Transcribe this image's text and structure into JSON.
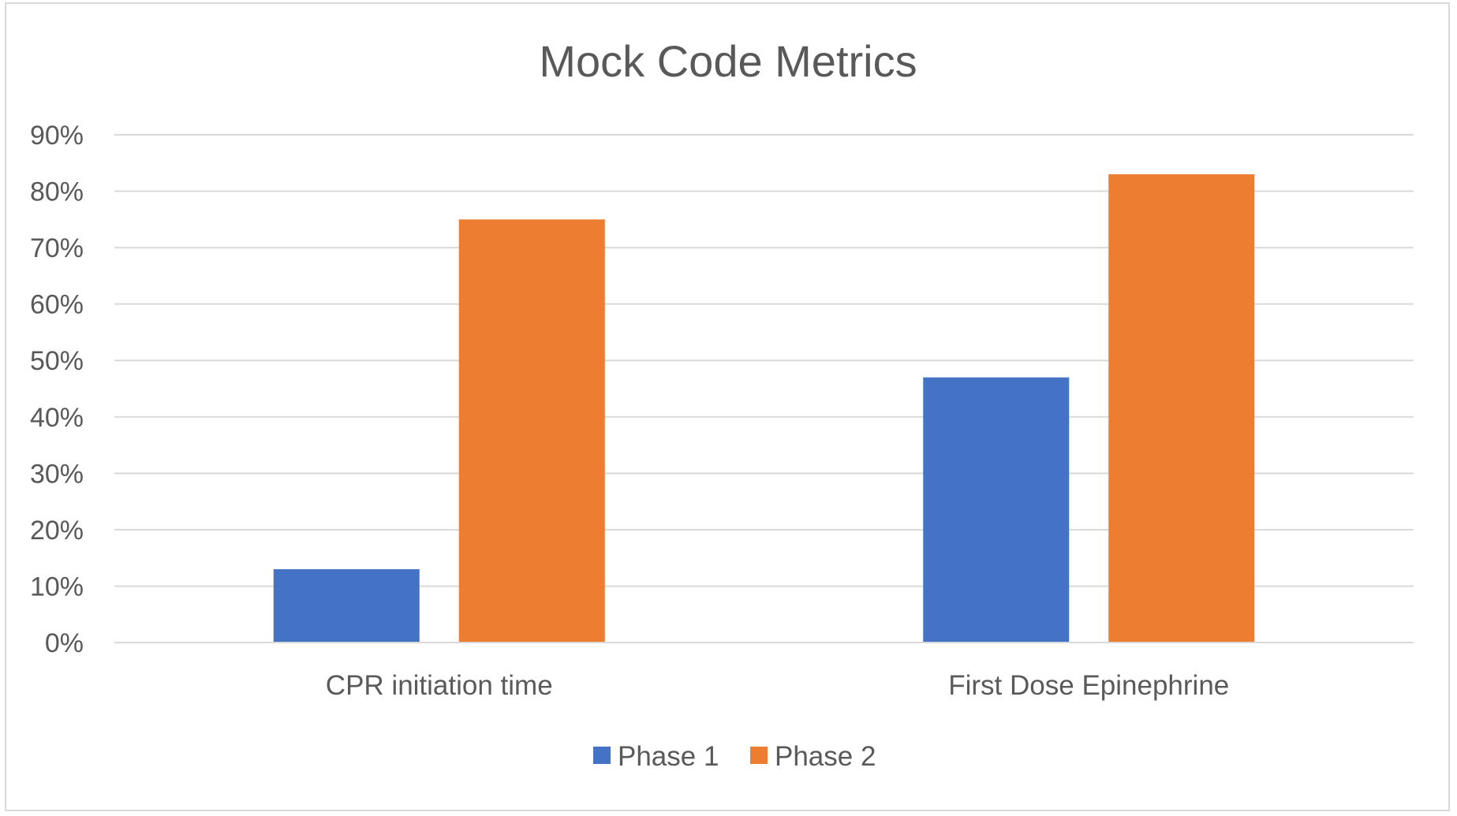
{
  "chart_data": {
    "type": "bar",
    "title": "Mock Code Metrics",
    "xlabel": "",
    "ylabel": "",
    "categories": [
      "CPR initiation time",
      "First Dose Epinephrine"
    ],
    "series": [
      {
        "name": "Phase 1",
        "color": "#4472C4",
        "values": [
          0.13,
          0.47
        ]
      },
      {
        "name": "Phase 2",
        "color": "#ED7D31",
        "values": [
          0.75,
          0.83
        ]
      }
    ],
    "ylim": [
      0,
      0.9
    ],
    "y_ticks": [
      0,
      0.1,
      0.2,
      0.3,
      0.4,
      0.5,
      0.6,
      0.7,
      0.8,
      0.9
    ],
    "y_tick_labels": [
      "0%",
      "10%",
      "20%",
      "30%",
      "40%",
      "50%",
      "60%",
      "70%",
      "80%",
      "90%"
    ],
    "y_format": "percent",
    "grid": true,
    "gridline_color": "#d9d9d9",
    "legend_position": "bottom"
  }
}
